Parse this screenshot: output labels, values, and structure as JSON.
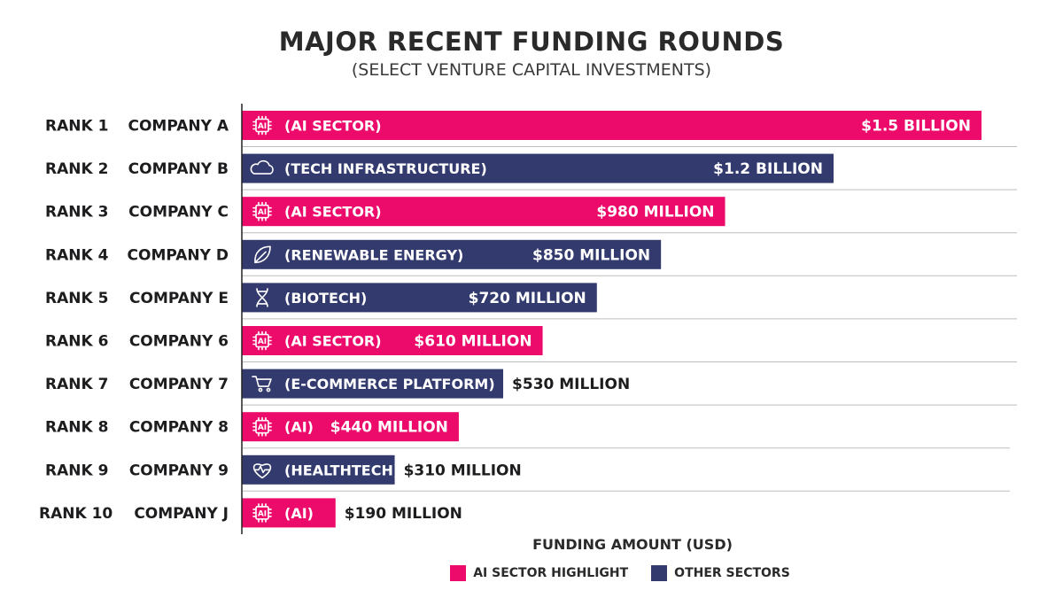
{
  "colors": {
    "ai": "#ec0a6b",
    "other": "#323a6e",
    "grid": "#bdbdbd",
    "axis": "#222222"
  },
  "chart_data": {
    "type": "bar",
    "orientation": "horizontal",
    "title": "MAJOR RECENT FUNDING ROUNDS",
    "subtitle": "(SELECT VENTURE CAPITAL INVESTMENTS)",
    "xlabel": "FUNDING AMOUNT (USD)",
    "unit": "USD millions",
    "xlim": [
      0,
      1600
    ],
    "grid": true,
    "legend_position": "bottom",
    "legend": [
      {
        "label": "AI SECTOR HIGHLIGHT",
        "color_key": "ai"
      },
      {
        "label": "OTHER SECTORS",
        "color_key": "other"
      }
    ],
    "rows": [
      {
        "rank": "RANK 1",
        "company": "COMPANY A",
        "sector": "(AI SECTOR)",
        "icon": "chip-icon",
        "group": "ai",
        "value": 1500,
        "value_label": "$1.5 BILLION"
      },
      {
        "rank": "RANK 2",
        "company": "COMPANY B",
        "sector": "(TECH INFRASTRUCTURE)",
        "icon": "cloud-icon",
        "group": "other",
        "value": 1200,
        "value_label": "$1.2 BILLION"
      },
      {
        "rank": "RANK 3",
        "company": "COMPANY C",
        "sector": "(AI SECTOR)",
        "icon": "chip-icon",
        "group": "ai",
        "value": 980,
        "value_label": "$980 MILLION"
      },
      {
        "rank": "RANK 4",
        "company": "COMPANY D",
        "sector": "(RENEWABLE ENERGY)",
        "icon": "leaf-icon",
        "group": "other",
        "value": 850,
        "value_label": "$850 MILLION"
      },
      {
        "rank": "RANK 5",
        "company": "COMPANY E",
        "sector": "(BIOTECH)",
        "icon": "dna-icon",
        "group": "other",
        "value": 720,
        "value_label": "$720 MILLION"
      },
      {
        "rank": "RANK 6",
        "company": "COMPANY 6",
        "sector": "(AI SECTOR)",
        "icon": "chip-icon",
        "group": "ai",
        "value": 610,
        "value_label": "$610 MILLION"
      },
      {
        "rank": "RANK 7",
        "company": "COMPANY 7",
        "sector": "(E-COMMERCE PLATFORM)",
        "icon": "cart-icon",
        "group": "other",
        "value": 530,
        "value_label": "$530 MILLION"
      },
      {
        "rank": "RANK 8",
        "company": "COMPANY 8",
        "sector": "(AI)",
        "icon": "chip-icon",
        "group": "ai",
        "value": 440,
        "value_label": "$440 MILLION"
      },
      {
        "rank": "RANK 9",
        "company": "COMPANY 9",
        "sector": "(HEALTHTECH)",
        "icon": "heartbeat-icon",
        "group": "other",
        "value": 310,
        "value_label": "$310 MILLION"
      },
      {
        "rank": "RANK 10",
        "company": "COMPANY J",
        "sector": "(AI)",
        "icon": "chip-icon",
        "group": "ai",
        "value": 190,
        "value_label": "$190 MILLION"
      }
    ]
  }
}
